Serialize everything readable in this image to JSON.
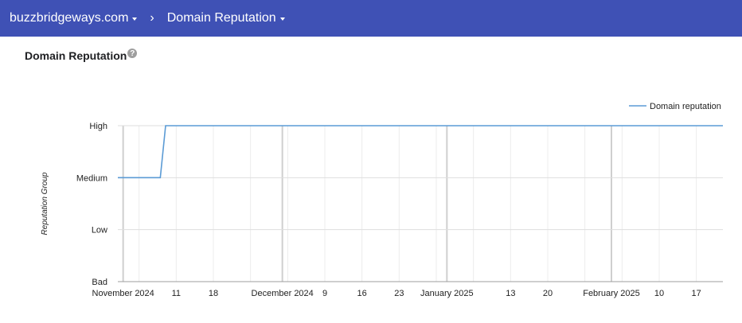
{
  "header": {
    "domain": "buzzbridgeways.com",
    "separator": "›",
    "page": "Domain Reputation",
    "colors": {
      "bar": "#3f51b5"
    }
  },
  "card": {
    "title": "Domain Reputation",
    "help_icon": "help-circle-icon"
  },
  "chart_data": {
    "type": "line",
    "ylabel": "Reputation Group",
    "y_categories": [
      "Bad",
      "Low",
      "Medium",
      "High"
    ],
    "x_ticks": [
      {
        "date": "2024-11-01",
        "label": "November 2024",
        "major": true
      },
      {
        "date": "2024-11-11",
        "label": "11",
        "major": false
      },
      {
        "date": "2024-11-18",
        "label": "18",
        "major": false
      },
      {
        "date": "2024-12-01",
        "label": "December 2024",
        "major": true
      },
      {
        "date": "2024-12-09",
        "label": "9",
        "major": false
      },
      {
        "date": "2024-12-16",
        "label": "16",
        "major": false
      },
      {
        "date": "2024-12-23",
        "label": "23",
        "major": false
      },
      {
        "date": "2025-01-01",
        "label": "January 2025",
        "major": true
      },
      {
        "date": "2025-01-13",
        "label": "13",
        "major": false
      },
      {
        "date": "2025-01-20",
        "label": "20",
        "major": false
      },
      {
        "date": "2025-02-01",
        "label": "February 2025",
        "major": true
      },
      {
        "date": "2025-02-10",
        "label": "10",
        "major": false
      },
      {
        "date": "2025-02-17",
        "label": "17",
        "major": false
      }
    ],
    "x_range": [
      "2024-10-31",
      "2025-02-22"
    ],
    "series": [
      {
        "name": "Domain reputation",
        "color": "#5b9bd5",
        "points": [
          {
            "x": "2024-10-31",
            "y": "Medium"
          },
          {
            "x": "2024-11-08",
            "y": "Medium"
          },
          {
            "x": "2024-11-09",
            "y": "High"
          },
          {
            "x": "2025-02-22",
            "y": "High"
          }
        ]
      }
    ],
    "legend": "top-right",
    "grid": true
  }
}
